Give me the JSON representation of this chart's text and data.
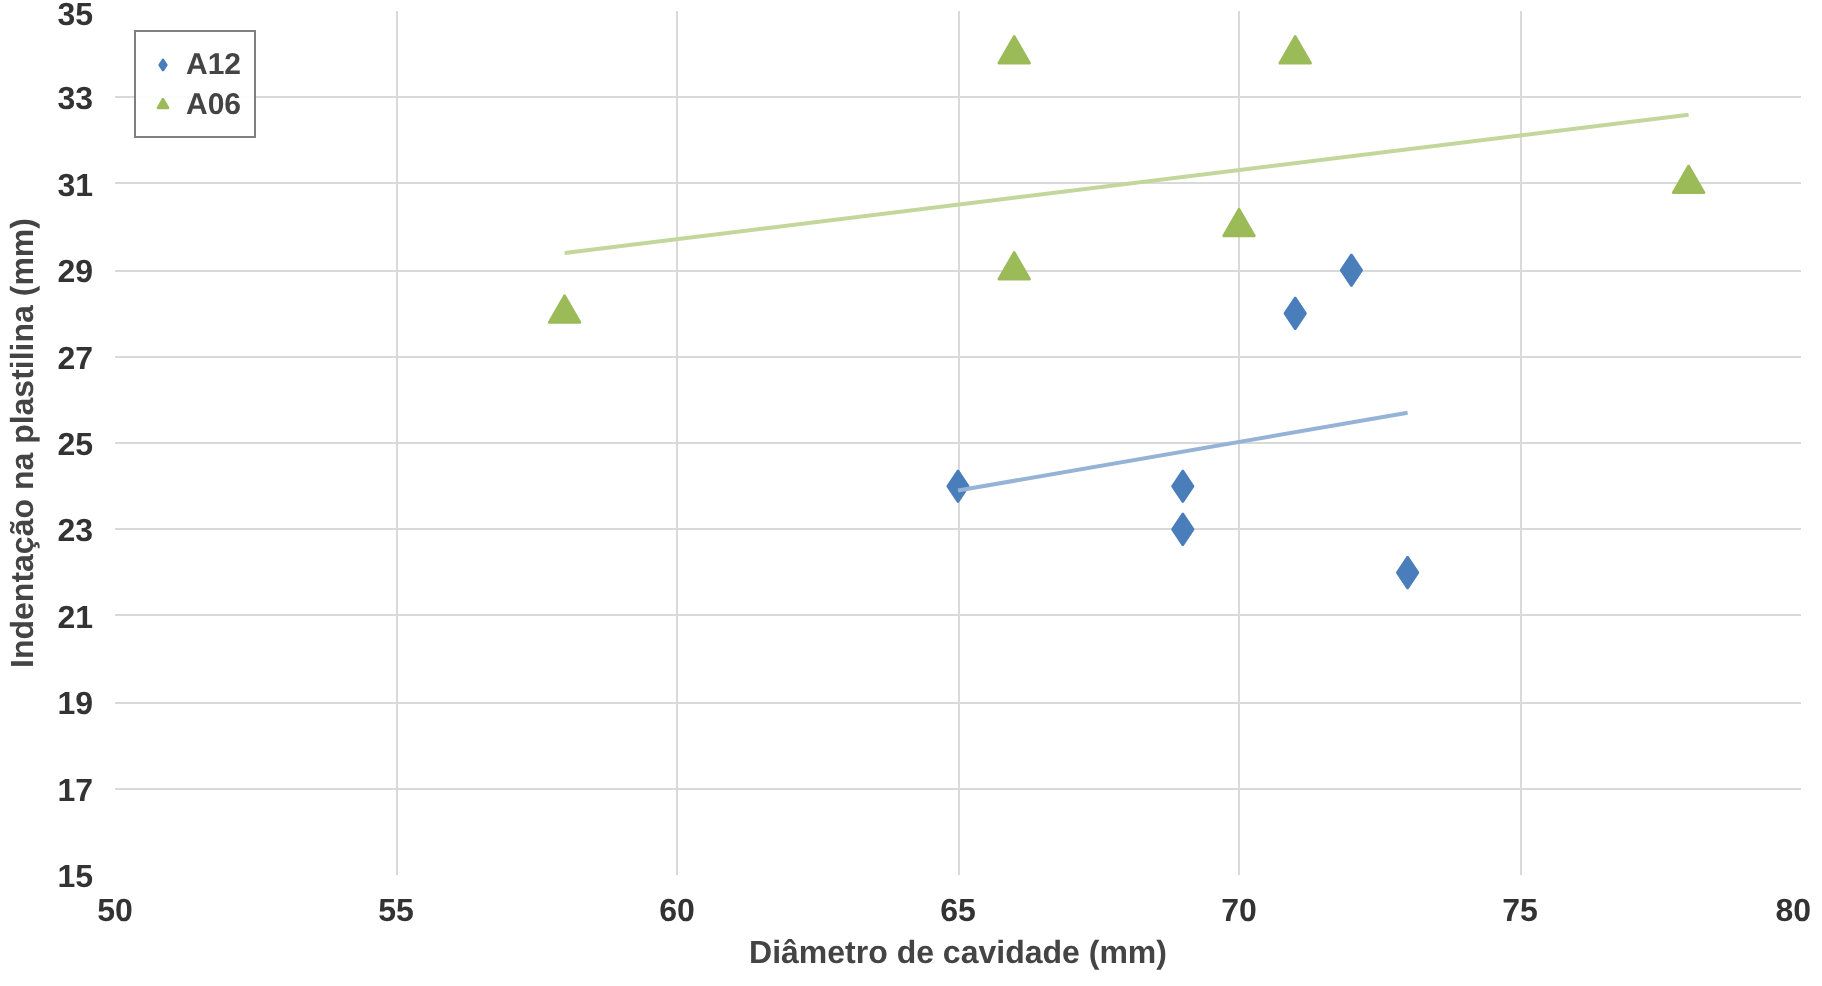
{
  "chart_data": {
    "type": "scatter",
    "xlabel": "Diâmetro de cavidade (mm)",
    "ylabel": "Indentação na plastilina (mm)",
    "xlim": [
      50,
      80
    ],
    "xticks": [
      50,
      55,
      60,
      65,
      70,
      75,
      80
    ],
    "ylim": [
      15,
      35
    ],
    "yticks": [
      15,
      17,
      19,
      21,
      23,
      25,
      27,
      29,
      31,
      33,
      35
    ],
    "grid": true,
    "legend": "top left",
    "series": [
      {
        "name": "A12",
        "color": "#4a7ebb",
        "marker": "diamond",
        "x": [
          65,
          69,
          69,
          71,
          72,
          73
        ],
        "values": [
          24,
          24,
          23,
          28,
          29,
          22
        ]
      },
      {
        "name": "A06",
        "color": "#9bbb59",
        "marker": "triangle",
        "x": [
          58,
          66,
          66,
          70,
          71,
          78
        ],
        "values": [
          28,
          34,
          29,
          30,
          34,
          31
        ]
      },
      {
        "type": "line",
        "color": "#95b3d7",
        "x": [
          65,
          73
        ],
        "values": [
          23.9,
          25.7
        ]
      },
      {
        "type": "line",
        "color": "#c3d69b",
        "x": [
          58,
          78
        ],
        "values": [
          29.4,
          32.6
        ]
      }
    ]
  }
}
